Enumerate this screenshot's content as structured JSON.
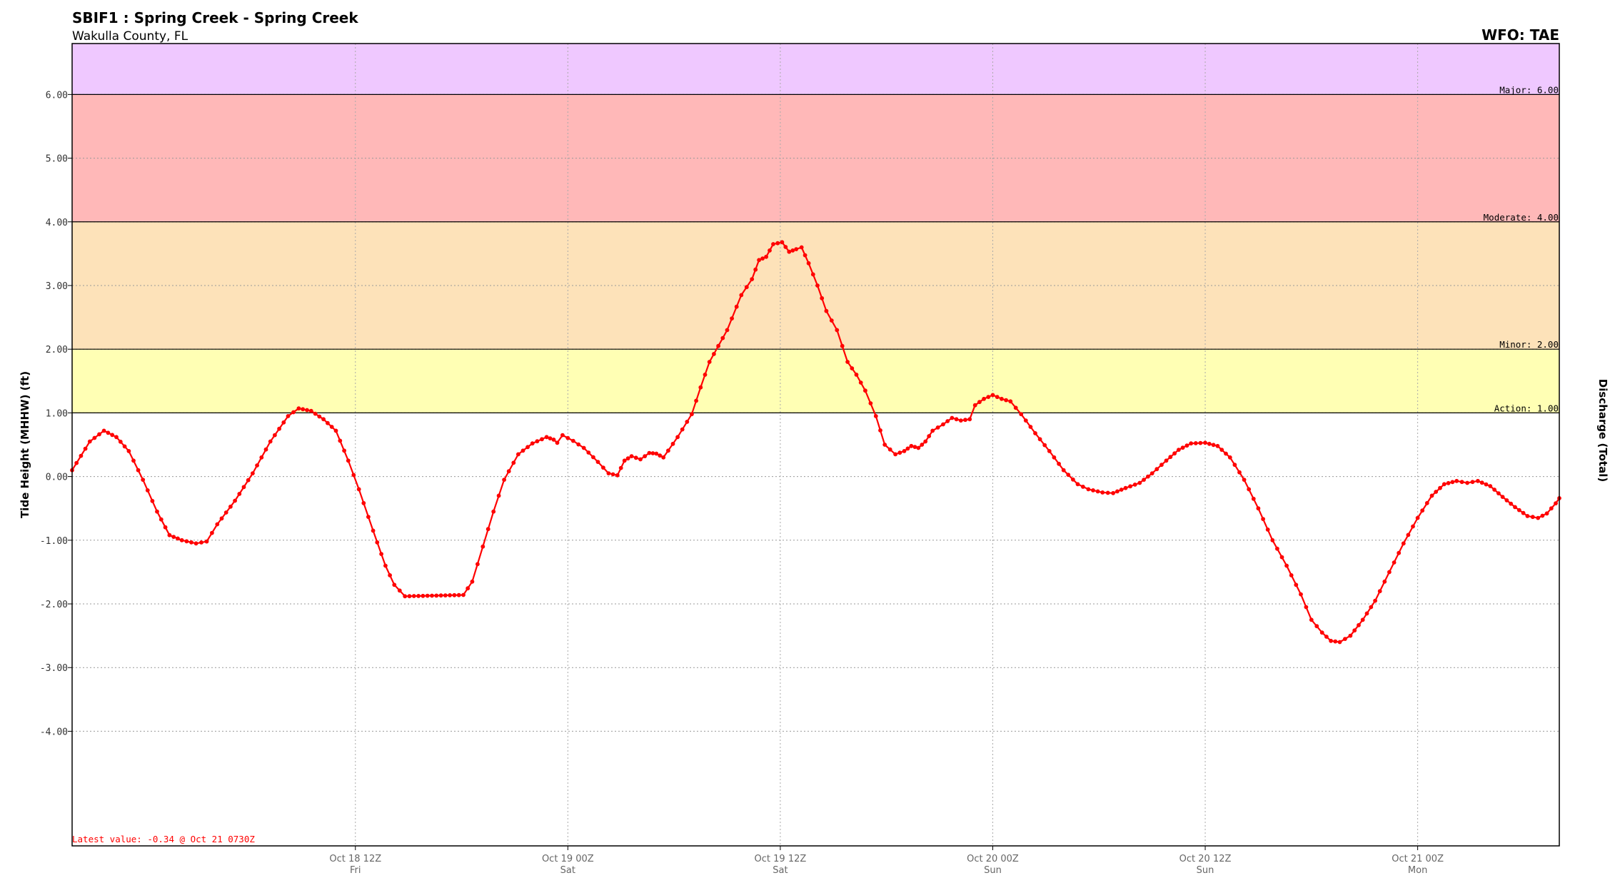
{
  "header": {
    "title": "SBIF1 : Spring Creek - Spring Creek",
    "subtitle": "Wakulla County, FL",
    "wfo": "WFO: TAE"
  },
  "chart_data": {
    "type": "line",
    "ylabel": "Tide Height (MHHW) (ft)",
    "y2label": "Discharge (Total)",
    "ylim": [
      -5.8,
      6.8
    ],
    "grid": true,
    "xlim": [
      0,
      84
    ],
    "x_units": "hours after Oct 17 20Z",
    "yticks": [
      "6.00",
      "5.00",
      "4.00",
      "3.00",
      "2.00",
      "1.00",
      "0.00",
      "-1.00",
      "-2.00",
      "-3.00",
      "-4.00"
    ],
    "xticks": [
      {
        "x": 16,
        "label": "Oct 18 12Z",
        "day": "Fri"
      },
      {
        "x": 28,
        "label": "Oct 19 00Z",
        "day": "Sat"
      },
      {
        "x": 40,
        "label": "Oct 19 12Z",
        "day": "Sat"
      },
      {
        "x": 52,
        "label": "Oct 20 00Z",
        "day": "Sun"
      },
      {
        "x": 64,
        "label": "Oct 20 12Z",
        "day": "Sun"
      },
      {
        "x": 76,
        "label": "Oct 21 00Z",
        "day": "Mon"
      }
    ],
    "thresholds": [
      {
        "name": "Action",
        "label": "Action: 1.00",
        "value": 1.0,
        "color": "#ffffb4"
      },
      {
        "name": "Minor",
        "label": "Minor: 2.00",
        "value": 2.0,
        "color": "#fde2b9"
      },
      {
        "name": "Moderate",
        "label": "Moderate: 4.00",
        "value": 4.0,
        "color": "#ffb8b8"
      },
      {
        "name": "Major",
        "label": "Major: 6.00",
        "value": 6.0,
        "color": "#efc8ff"
      }
    ],
    "series": [
      {
        "color": "#ff0000",
        "points": [
          [
            0.0,
            0.1
          ],
          [
            1.0,
            0.55
          ],
          [
            1.8,
            0.72
          ],
          [
            2.5,
            0.62
          ],
          [
            3.2,
            0.4
          ],
          [
            4.0,
            -0.05
          ],
          [
            4.8,
            -0.55
          ],
          [
            5.5,
            -0.92
          ],
          [
            6.2,
            -1.0
          ],
          [
            7.0,
            -1.05
          ],
          [
            7.6,
            -1.02
          ],
          [
            8.2,
            -0.75
          ],
          [
            9.2,
            -0.38
          ],
          [
            10.2,
            0.05
          ],
          [
            11.2,
            0.55
          ],
          [
            12.2,
            0.95
          ],
          [
            12.8,
            1.07
          ],
          [
            13.5,
            1.03
          ],
          [
            14.2,
            0.9
          ],
          [
            14.9,
            0.72
          ],
          [
            15.6,
            0.25
          ],
          [
            16.2,
            -0.2
          ],
          [
            17.0,
            -0.85
          ],
          [
            17.7,
            -1.4
          ],
          [
            18.2,
            -1.7
          ],
          [
            18.8,
            -1.88
          ],
          [
            22.1,
            -1.86
          ],
          [
            22.6,
            -1.65
          ],
          [
            23.2,
            -1.1
          ],
          [
            23.8,
            -0.55
          ],
          [
            24.4,
            -0.05
          ],
          [
            25.2,
            0.35
          ],
          [
            26.0,
            0.52
          ],
          [
            26.8,
            0.62
          ],
          [
            27.2,
            0.58
          ],
          [
            27.4,
            0.53
          ],
          [
            27.7,
            0.65
          ],
          [
            28.3,
            0.56
          ],
          [
            28.9,
            0.45
          ],
          [
            29.7,
            0.23
          ],
          [
            30.3,
            0.05
          ],
          [
            30.8,
            0.02
          ],
          [
            31.2,
            0.25
          ],
          [
            31.6,
            0.32
          ],
          [
            32.1,
            0.27
          ],
          [
            32.6,
            0.37
          ],
          [
            33.0,
            0.36
          ],
          [
            33.4,
            0.3
          ],
          [
            34.2,
            0.62
          ],
          [
            35.0,
            0.98
          ],
          [
            35.5,
            1.4
          ],
          [
            36.0,
            1.8
          ],
          [
            37.0,
            2.3
          ],
          [
            37.8,
            2.85
          ],
          [
            38.4,
            3.1
          ],
          [
            38.8,
            3.4
          ],
          [
            39.2,
            3.45
          ],
          [
            39.6,
            3.65
          ],
          [
            40.1,
            3.68
          ],
          [
            40.5,
            3.53
          ],
          [
            40.9,
            3.57
          ],
          [
            41.2,
            3.6
          ],
          [
            41.6,
            3.35
          ],
          [
            42.1,
            3.0
          ],
          [
            42.6,
            2.6
          ],
          [
            43.2,
            2.3
          ],
          [
            43.8,
            1.8
          ],
          [
            44.3,
            1.6
          ],
          [
            44.8,
            1.35
          ],
          [
            45.4,
            0.95
          ],
          [
            45.9,
            0.5
          ],
          [
            46.5,
            0.35
          ],
          [
            47.0,
            0.4
          ],
          [
            47.4,
            0.48
          ],
          [
            47.8,
            0.45
          ],
          [
            48.2,
            0.55
          ],
          [
            48.6,
            0.72
          ],
          [
            49.2,
            0.82
          ],
          [
            49.7,
            0.92
          ],
          [
            50.2,
            0.88
          ],
          [
            50.7,
            0.9
          ],
          [
            51.0,
            1.12
          ],
          [
            51.5,
            1.22
          ],
          [
            52.0,
            1.28
          ],
          [
            52.5,
            1.22
          ],
          [
            53.0,
            1.18
          ],
          [
            53.6,
            0.98
          ],
          [
            54.4,
            0.68
          ],
          [
            55.2,
            0.4
          ],
          [
            56.0,
            0.1
          ],
          [
            56.8,
            -0.12
          ],
          [
            57.4,
            -0.2
          ],
          [
            58.2,
            -0.25
          ],
          [
            58.8,
            -0.26
          ],
          [
            59.5,
            -0.18
          ],
          [
            60.3,
            -0.1
          ],
          [
            61.0,
            0.05
          ],
          [
            61.8,
            0.25
          ],
          [
            62.5,
            0.42
          ],
          [
            63.2,
            0.52
          ],
          [
            64.0,
            0.53
          ],
          [
            64.7,
            0.48
          ],
          [
            65.4,
            0.3
          ],
          [
            66.2,
            -0.05
          ],
          [
            67.0,
            -0.5
          ],
          [
            67.8,
            -1.0
          ],
          [
            68.6,
            -1.4
          ],
          [
            69.4,
            -1.85
          ],
          [
            70.0,
            -2.25
          ],
          [
            70.6,
            -2.45
          ],
          [
            71.1,
            -2.58
          ],
          [
            71.6,
            -2.6
          ],
          [
            72.2,
            -2.5
          ],
          [
            72.9,
            -2.25
          ],
          [
            73.6,
            -1.95
          ],
          [
            74.4,
            -1.5
          ],
          [
            75.2,
            -1.05
          ],
          [
            76.0,
            -0.65
          ],
          [
            76.8,
            -0.3
          ],
          [
            77.5,
            -0.12
          ],
          [
            78.2,
            -0.07
          ],
          [
            78.8,
            -0.1
          ],
          [
            79.4,
            -0.07
          ],
          [
            80.1,
            -0.15
          ],
          [
            80.8,
            -0.32
          ],
          [
            81.5,
            -0.48
          ],
          [
            82.2,
            -0.62
          ],
          [
            82.8,
            -0.65
          ],
          [
            83.3,
            -0.58
          ],
          [
            83.8,
            -0.42
          ],
          [
            84.0,
            -0.34
          ]
        ]
      }
    ],
    "latest_value": "Latest value: -0.34 @ Oct 21 0730Z"
  }
}
